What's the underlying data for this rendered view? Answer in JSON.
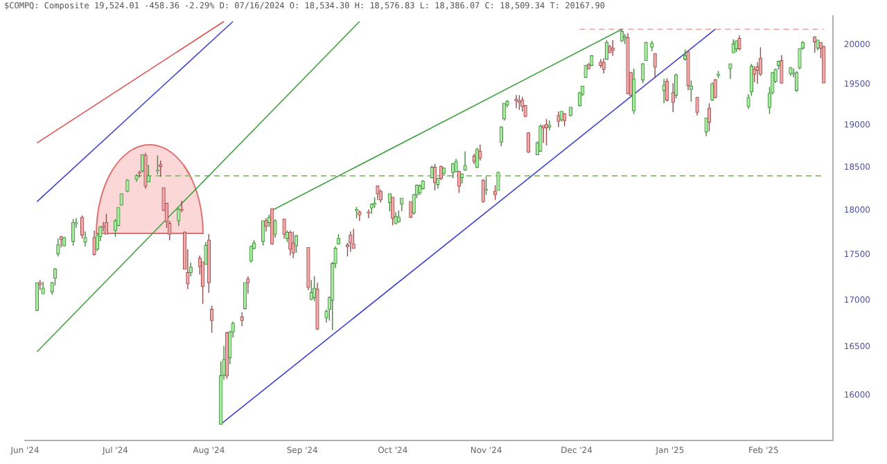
{
  "chart_data": {
    "type": "candlestick",
    "title": "$COMPQ: Composite 19,524.01 -458.36 -2.29% D: 07/16/2024 O: 18,534.30 H: 18,576.83 L: 18,386.07 C: 18,509.34 T: 20167.90",
    "x": [
      "2024-06-05",
      "2024-06-06",
      "2024-06-07",
      "2024-06-10",
      "2024-06-11",
      "2024-06-12",
      "2024-06-13",
      "2024-06-14",
      "2024-06-17",
      "2024-06-18",
      "2024-06-20",
      "2024-06-21",
      "2024-06-24",
      "2024-06-25",
      "2024-06-26",
      "2024-06-27",
      "2024-06-28",
      "2024-07-01",
      "2024-07-02",
      "2024-07-03",
      "2024-07-05",
      "2024-07-08",
      "2024-07-09",
      "2024-07-10",
      "2024-07-11",
      "2024-07-12",
      "2024-07-15",
      "2024-07-16",
      "2024-07-17",
      "2024-07-18",
      "2024-07-19",
      "2024-07-22",
      "2024-07-23",
      "2024-07-24",
      "2024-07-25",
      "2024-07-26",
      "2024-07-29",
      "2024-07-30",
      "2024-07-31",
      "2024-08-01",
      "2024-08-02",
      "2024-08-05",
      "2024-08-06",
      "2024-08-07",
      "2024-08-08",
      "2024-08-09",
      "2024-08-12",
      "2024-08-13",
      "2024-08-14",
      "2024-08-15",
      "2024-08-16",
      "2024-08-19",
      "2024-08-20",
      "2024-08-21",
      "2024-08-22",
      "2024-08-23",
      "2024-08-26",
      "2024-08-27",
      "2024-08-28",
      "2024-08-29",
      "2024-08-30",
      "2024-09-03",
      "2024-09-04",
      "2024-09-05",
      "2024-09-06",
      "2024-09-09",
      "2024-09-10",
      "2024-09-11",
      "2024-09-12",
      "2024-09-13",
      "2024-09-16",
      "2024-09-17",
      "2024-09-18",
      "2024-09-19",
      "2024-09-20",
      "2024-09-23",
      "2024-09-24",
      "2024-09-25",
      "2024-09-26",
      "2024-09-27",
      "2024-09-30",
      "2024-10-01",
      "2024-10-02",
      "2024-10-03",
      "2024-10-04",
      "2024-10-07",
      "2024-10-08",
      "2024-10-09",
      "2024-10-10",
      "2024-10-11",
      "2024-10-14",
      "2024-10-15",
      "2024-10-16",
      "2024-10-17",
      "2024-10-18",
      "2024-10-21",
      "2024-10-22",
      "2024-10-23",
      "2024-10-24",
      "2024-10-25",
      "2024-10-28",
      "2024-10-29",
      "2024-10-30",
      "2024-10-31",
      "2024-11-01",
      "2024-11-04",
      "2024-11-05",
      "2024-11-06",
      "2024-11-07",
      "2024-11-08",
      "2024-11-11",
      "2024-11-12",
      "2024-11-13",
      "2024-11-14",
      "2024-11-15",
      "2024-11-18",
      "2024-11-19",
      "2024-11-20",
      "2024-11-21",
      "2024-11-22",
      "2024-11-25",
      "2024-11-26",
      "2024-11-27",
      "2024-11-29",
      "2024-12-02",
      "2024-12-03",
      "2024-12-04",
      "2024-12-05",
      "2024-12-06",
      "2024-12-09",
      "2024-12-10",
      "2024-12-11",
      "2024-12-12",
      "2024-12-13",
      "2024-12-16",
      "2024-12-17",
      "2024-12-18",
      "2024-12-19",
      "2024-12-20",
      "2024-12-23",
      "2024-12-24",
      "2024-12-26",
      "2024-12-27",
      "2024-12-30",
      "2024-12-31",
      "2025-01-02",
      "2025-01-03",
      "2025-01-06",
      "2025-01-07",
      "2025-01-08",
      "2025-01-10",
      "2025-01-13",
      "2025-01-14",
      "2025-01-15",
      "2025-01-16",
      "2025-01-17",
      "2025-01-21",
      "2025-01-22",
      "2025-01-23",
      "2025-01-24",
      "2025-01-27",
      "2025-01-28",
      "2025-01-29",
      "2025-01-30",
      "2025-01-31",
      "2025-02-03",
      "2025-02-04",
      "2025-02-05",
      "2025-02-06",
      "2025-02-07",
      "2025-02-10",
      "2025-02-11",
      "2025-02-12",
      "2025-02-13",
      "2025-02-14",
      "2025-02-18",
      "2025-02-19",
      "2025-02-20",
      "2025-02-21"
    ],
    "ohlc": [
      [
        16890,
        17190,
        16880,
        17190
      ],
      [
        17190,
        17220,
        17110,
        17170
      ],
      [
        17070,
        17200,
        17070,
        17130
      ],
      [
        17090,
        17200,
        17060,
        17190
      ],
      [
        17240,
        17350,
        17160,
        17340
      ],
      [
        17510,
        17680,
        17480,
        17610
      ],
      [
        17700,
        17710,
        17580,
        17670
      ],
      [
        17600,
        17700,
        17590,
        17690
      ],
      [
        17650,
        17900,
        17600,
        17860
      ],
      [
        17850,
        17910,
        17800,
        17860
      ],
      [
        17920,
        17940,
        17680,
        17720
      ],
      [
        17640,
        17760,
        17590,
        17690
      ],
      [
        17690,
        17770,
        17490,
        17500
      ],
      [
        17560,
        17730,
        17540,
        17720
      ],
      [
        17700,
        17820,
        17650,
        17810
      ],
      [
        17820,
        17870,
        17760,
        17810
      ],
      [
        17860,
        17960,
        17730,
        17730
      ],
      [
        17770,
        17900,
        17700,
        17880
      ],
      [
        17830,
        18030,
        17820,
        18030
      ],
      [
        18060,
        18190,
        18060,
        18190
      ],
      [
        18220,
        18360,
        18210,
        18350
      ],
      [
        18360,
        18420,
        18330,
        18400
      ],
      [
        18440,
        18460,
        18380,
        18430
      ],
      [
        18460,
        18650,
        18440,
        18650
      ],
      [
        18640,
        18670,
        18250,
        18280
      ],
      [
        18330,
        18530,
        18330,
        18400
      ],
      [
        18460,
        18640,
        18420,
        18470
      ],
      [
        18530,
        18580,
        18390,
        18510
      ],
      [
        18260,
        18260,
        17990,
        18000
      ],
      [
        18080,
        18080,
        17800,
        17870
      ],
      [
        17850,
        17880,
        17660,
        17730
      ],
      [
        17880,
        18030,
        17820,
        18010
      ],
      [
        18010,
        18110,
        17980,
        18000
      ],
      [
        17750,
        17760,
        17340,
        17340
      ],
      [
        17300,
        17560,
        17120,
        17180
      ],
      [
        17300,
        17410,
        17260,
        17360
      ],
      [
        17460,
        17490,
        17280,
        17370
      ],
      [
        17420,
        17420,
        16960,
        17150
      ],
      [
        17390,
        17640,
        17390,
        17600
      ],
      [
        17660,
        17730,
        17080,
        17190
      ],
      [
        16900,
        16940,
        16650,
        16780
      ],
      [
        15710,
        16350,
        15710,
        16200
      ],
      [
        16210,
        16510,
        16160,
        16370
      ],
      [
        16650,
        16660,
        16170,
        16200
      ],
      [
        16390,
        16670,
        16320,
        16660
      ],
      [
        16660,
        16770,
        16600,
        16750
      ],
      [
        16820,
        16870,
        16720,
        16780
      ],
      [
        16910,
        17190,
        16900,
        17190
      ],
      [
        17230,
        17260,
        17070,
        17190
      ],
      [
        17430,
        17600,
        17410,
        17590
      ],
      [
        17570,
        17660,
        17560,
        17630
      ],
      [
        17650,
        17880,
        17600,
        17880
      ],
      [
        17880,
        17910,
        17760,
        17820
      ],
      [
        17860,
        17950,
        17810,
        17920
      ],
      [
        18020,
        18020,
        17610,
        17620
      ],
      [
        17730,
        17900,
        17690,
        17880
      ],
      [
        17900,
        17900,
        17680,
        17730
      ],
      [
        17680,
        17770,
        17640,
        17750
      ],
      [
        17750,
        17770,
        17490,
        17560
      ],
      [
        17630,
        17760,
        17460,
        17520
      ],
      [
        17600,
        17720,
        17520,
        17710
      ],
      [
        17580,
        17580,
        17110,
        17140
      ],
      [
        17010,
        17220,
        17000,
        17080
      ],
      [
        17030,
        17260,
        16990,
        17130
      ],
      [
        17120,
        17190,
        16680,
        16690
      ],
      [
        16810,
        16900,
        16760,
        16880
      ],
      [
        16900,
        17040,
        16780,
        17030
      ],
      [
        17000,
        17420,
        16680,
        17400
      ],
      [
        17400,
        17590,
        17350,
        17570
      ],
      [
        17620,
        17730,
        17610,
        17680
      ],
      [
        17610,
        17630,
        17480,
        17590
      ],
      [
        17720,
        17760,
        17530,
        17630
      ],
      [
        17620,
        17790,
        17570,
        17570
      ],
      [
        18000,
        18040,
        17910,
        18010
      ],
      [
        17980,
        18000,
        17880,
        17950
      ],
      [
        17980,
        18010,
        17910,
        17970
      ],
      [
        18030,
        18080,
        17960,
        18070
      ],
      [
        18070,
        18150,
        18030,
        18080
      ],
      [
        18280,
        18280,
        18120,
        18190
      ],
      [
        18220,
        18240,
        18090,
        18120
      ],
      [
        18090,
        18190,
        17990,
        18190
      ],
      [
        18150,
        18150,
        17830,
        17910
      ],
      [
        17850,
        17980,
        17840,
        17930
      ],
      [
        17870,
        18000,
        17860,
        17920
      ],
      [
        18070,
        18140,
        17990,
        18140
      ],
      [
        18100,
        18100,
        17910,
        17920
      ],
      [
        17970,
        18190,
        17950,
        18180
      ],
      [
        18180,
        18300,
        18140,
        18290
      ],
      [
        18200,
        18300,
        18180,
        18280
      ],
      [
        18250,
        18350,
        18240,
        18340
      ],
      [
        18380,
        18520,
        18370,
        18500
      ],
      [
        18500,
        18540,
        18230,
        18320
      ],
      [
        18300,
        18370,
        18250,
        18370
      ],
      [
        18510,
        18520,
        18350,
        18370
      ],
      [
        18430,
        18500,
        18400,
        18490
      ],
      [
        18440,
        18550,
        18370,
        18540
      ],
      [
        18450,
        18600,
        18440,
        18570
      ],
      [
        18450,
        18460,
        18200,
        18280
      ],
      [
        18380,
        18430,
        18310,
        18420
      ],
      [
        18470,
        18690,
        18460,
        18520
      ],
      [
        18630,
        18660,
        18540,
        18570
      ],
      [
        18500,
        18730,
        18490,
        18710
      ],
      [
        18690,
        18770,
        18580,
        18610
      ],
      [
        18350,
        18360,
        18090,
        18100
      ],
      [
        18230,
        18390,
        18180,
        18240
      ],
      [
        18220,
        18290,
        18120,
        18180
      ],
      [
        18230,
        18450,
        18230,
        18440
      ],
      [
        18800,
        18990,
        18750,
        18980
      ],
      [
        19080,
        19270,
        19060,
        19270
      ],
      [
        19250,
        19310,
        19220,
        19290
      ],
      [
        19320,
        19370,
        19210,
        19300
      ],
      [
        19290,
        19370,
        19190,
        19280
      ],
      [
        19310,
        19350,
        19170,
        19230
      ],
      [
        19240,
        19250,
        19100,
        19110
      ],
      [
        18910,
        18920,
        18670,
        18680
      ],
      [
        18650,
        18810,
        18650,
        18790
      ],
      [
        18690,
        19010,
        18690,
        18990
      ],
      [
        19000,
        19000,
        18790,
        18970
      ],
      [
        19010,
        19080,
        18760,
        18970
      ],
      [
        18980,
        19060,
        18940,
        19000
      ],
      [
        19120,
        19170,
        18980,
        19050
      ],
      [
        19070,
        19170,
        19050,
        19170
      ],
      [
        19140,
        19150,
        18990,
        19060
      ],
      [
        19120,
        19220,
        19110,
        19220
      ],
      [
        19240,
        19410,
        19230,
        19400
      ],
      [
        19380,
        19480,
        19360,
        19480
      ],
      [
        19590,
        19740,
        19580,
        19740
      ],
      [
        19750,
        19770,
        19690,
        19700
      ],
      [
        19740,
        19870,
        19730,
        19860
      ],
      [
        19780,
        19820,
        19710,
        19740
      ],
      [
        19780,
        19830,
        19640,
        19690
      ],
      [
        19820,
        20060,
        19810,
        20030
      ],
      [
        19980,
        20000,
        19900,
        19900
      ],
      [
        19960,
        20060,
        19860,
        19930
      ],
      [
        20050,
        20200,
        20040,
        20170
      ],
      [
        20090,
        20140,
        20010,
        20110
      ],
      [
        20090,
        20150,
        19380,
        19390
      ],
      [
        19650,
        19660,
        19370,
        19370
      ],
      [
        19180,
        19700,
        19140,
        19570
      ],
      [
        19560,
        19770,
        19520,
        19760
      ],
      [
        19800,
        20040,
        19800,
        20030
      ],
      [
        19970,
        20050,
        19920,
        20020
      ],
      [
        19890,
        19890,
        19580,
        19720
      ],
      [
        19430,
        19570,
        19270,
        19490
      ],
      [
        19540,
        19580,
        19290,
        19310
      ],
      [
        19400,
        19520,
        19160,
        19280
      ],
      [
        19370,
        19640,
        19330,
        19620
      ],
      [
        19820,
        19940,
        19800,
        19860
      ],
      [
        19910,
        19920,
        19430,
        19490
      ],
      [
        19440,
        19550,
        19290,
        19480
      ],
      [
        19340,
        19350,
        19120,
        19160
      ],
      [
        18920,
        19090,
        18870,
        19090
      ],
      [
        19210,
        19270,
        18930,
        19040
      ],
      [
        19310,
        19530,
        19300,
        19510
      ],
      [
        19560,
        19570,
        19330,
        19340
      ],
      [
        19620,
        19670,
        19580,
        19630
      ],
      [
        19700,
        19760,
        19570,
        19760
      ],
      [
        19900,
        20070,
        19900,
        20010
      ],
      [
        19950,
        20060,
        19910,
        20050
      ],
      [
        20080,
        20120,
        19930,
        19950
      ],
      [
        19230,
        19380,
        19200,
        19340
      ],
      [
        19410,
        19760,
        19360,
        19730
      ],
      [
        19690,
        19730,
        19530,
        19630
      ],
      [
        19720,
        19780,
        19510,
        19680
      ],
      [
        19830,
        19970,
        19610,
        19630
      ],
      [
        19220,
        19470,
        19140,
        19390
      ],
      [
        19400,
        19660,
        19380,
        19650
      ],
      [
        19540,
        19700,
        19520,
        19690
      ],
      [
        19740,
        19800,
        19690,
        19790
      ],
      [
        19800,
        19870,
        19510,
        19520
      ],
      [
        19640,
        19720,
        19610,
        19710
      ],
      [
        19630,
        19700,
        19590,
        19640
      ],
      [
        19430,
        19670,
        19410,
        19650
      ],
      [
        19710,
        19950,
        19690,
        19950
      ],
      [
        19960,
        20050,
        19940,
        20030
      ],
      [
        20100,
        20110,
        19900,
        20040
      ],
      [
        19960,
        20060,
        19930,
        20060
      ],
      [
        20030,
        20030,
        19830,
        19960
      ],
      [
        19980,
        19990,
        19520,
        19520
      ]
    ],
    "series": [
      {
        "type": "line",
        "color": "#e05050",
        "x": [
          "2024-06-05",
          "2024-08-06"
        ],
        "values": [
          18790,
          20300
        ]
      },
      {
        "type": "line",
        "color": "#4040d0",
        "x": [
          "2024-06-05",
          "2024-08-09"
        ],
        "values": [
          18100,
          20300
        ]
      },
      {
        "type": "line",
        "color": "#40a040",
        "x": [
          "2024-06-05",
          "2024-09-20"
        ],
        "values": [
          16450,
          20300
        ]
      },
      {
        "type": "line",
        "color": "#40a040",
        "x": [
          "2024-08-22",
          "2024-12-16"
        ],
        "values": [
          18000,
          20200
        ]
      },
      {
        "type": "line",
        "color": "#4040d0",
        "x": [
          "2024-08-05",
          "2025-01-16"
        ],
        "values": [
          15710,
          20200
        ]
      },
      {
        "type": "line",
        "color": "#80c060",
        "line_style": "dashed",
        "x": [
          "2024-07-08",
          "2025-02-21"
        ],
        "values": [
          18400,
          18400
        ]
      },
      {
        "type": "line",
        "color": "#f0a0a0",
        "line_style": "dashed",
        "x": [
          "2024-12-02",
          "2025-02-21"
        ],
        "values": [
          20200,
          20200
        ]
      }
    ],
    "xlim": [
      "2024-06-01",
      "2025-02-24"
    ],
    "xticks": [
      {
        "value": "2024-06-01",
        "label": "Jun '24"
      },
      {
        "value": "2024-07-01",
        "label": "Jul '24"
      },
      {
        "value": "2024-08-01",
        "label": "Aug '24"
      },
      {
        "value": "2024-09-01",
        "label": "Sep '24"
      },
      {
        "value": "2024-10-01",
        "label": "Oct '24"
      },
      {
        "value": "2024-11-01",
        "label": "Nov '24"
      },
      {
        "value": "2024-12-01",
        "label": "Dec '24"
      },
      {
        "value": "2025-01-01",
        "label": "Jan '25"
      },
      {
        "value": "2025-02-01",
        "label": "Feb '25"
      }
    ],
    "ylim": [
      15550,
      20370
    ],
    "yticks": [
      16000,
      16500,
      17000,
      17500,
      18000,
      18500,
      19000,
      19500,
      20000
    ],
    "log": true,
    "grid": false,
    "legend": false
  }
}
